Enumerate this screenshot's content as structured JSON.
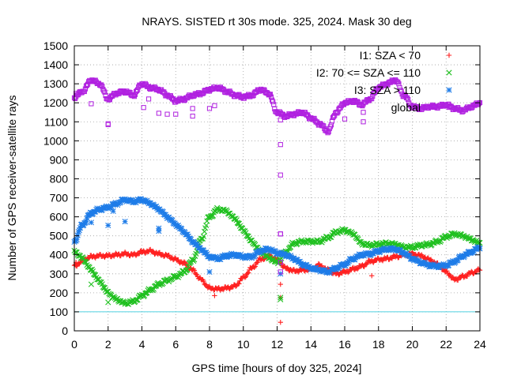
{
  "chart_data": {
    "type": "scatter",
    "title": "NRAYS. SISTED rt 30s mode. 325, 2024. Mask 30 deg",
    "xlabel": "GPS time [hours of doy 325, 2024]",
    "ylabel": "Number of GPS receiver-satellite rays",
    "xlim": [
      0,
      24
    ],
    "ylim": [
      0,
      1500
    ],
    "x_ticks": [
      0,
      2,
      4,
      6,
      8,
      10,
      12,
      14,
      16,
      18,
      20,
      22,
      24
    ],
    "y_ticks": [
      0,
      100,
      200,
      300,
      400,
      500,
      600,
      700,
      800,
      900,
      1000,
      1100,
      1200,
      1300,
      1400,
      1500
    ],
    "grid": true,
    "legend_position": "top-right",
    "threshold_line": {
      "y": 100,
      "color": "#4fd0e0"
    },
    "series": [
      {
        "name": "I1: SZA < 70",
        "marker": "+",
        "color": "#ff2020",
        "x": [
          0,
          0.5,
          1,
          1.5,
          2,
          2.5,
          3,
          3.5,
          4,
          4.5,
          5,
          5.5,
          6,
          6.5,
          7,
          7.5,
          8,
          8.5,
          9,
          9.5,
          10,
          10.5,
          11,
          11.5,
          12,
          12.5,
          13,
          13.5,
          14,
          14.5,
          15,
          15.5,
          16,
          16.5,
          17,
          17.5,
          18,
          18.5,
          19,
          19.5,
          20,
          20.5,
          21,
          21.5,
          22,
          22.5,
          23,
          23.5,
          24
        ],
        "y": [
          340,
          370,
          390,
          395,
          395,
          400,
          405,
          400,
          415,
          420,
          405,
          395,
          375,
          355,
          320,
          270,
          225,
          220,
          225,
          235,
          280,
          330,
          375,
          395,
          375,
          330,
          315,
          320,
          325,
          345,
          320,
          300,
          310,
          325,
          340,
          365,
          375,
          380,
          390,
          400,
          405,
          395,
          375,
          350,
          310,
          270,
          285,
          305,
          320
        ],
        "outliers": [
          [
            0.1,
            360
          ],
          [
            8.3,
            185
          ],
          [
            12.2,
            245
          ],
          [
            12.2,
            175
          ],
          [
            12.2,
            45
          ],
          [
            16.6,
            330
          ],
          [
            17.6,
            290
          ]
        ]
      },
      {
        "name": "I2: 70 <= SZA <= 110",
        "marker": "×",
        "color": "#20c020",
        "x": [
          0,
          0.5,
          1,
          1.5,
          2,
          2.5,
          3,
          3.5,
          4,
          4.5,
          5,
          5.5,
          6,
          6.5,
          7,
          7.5,
          8,
          8.5,
          9,
          9.5,
          10,
          10.5,
          11,
          11.5,
          12,
          12.5,
          13,
          13.5,
          14,
          14.5,
          15,
          15.5,
          16,
          16.5,
          17,
          17.5,
          18,
          18.5,
          19,
          19.5,
          20,
          20.5,
          21,
          21.5,
          22,
          22.5,
          23,
          23.5,
          24
        ],
        "y": [
          420,
          380,
          320,
          260,
          200,
          165,
          145,
          155,
          185,
          215,
          245,
          265,
          285,
          310,
          370,
          480,
          600,
          640,
          630,
          590,
          530,
          470,
          420,
          385,
          360,
          415,
          460,
          470,
          470,
          470,
          490,
          520,
          530,
          510,
          460,
          450,
          455,
          460,
          455,
          440,
          440,
          450,
          455,
          470,
          495,
          510,
          500,
          480,
          460
        ],
        "outliers": [
          [
            1.0,
            245
          ],
          [
            2.0,
            150
          ],
          [
            8.2,
            605
          ],
          [
            12.2,
            175
          ],
          [
            12.2,
            165
          ]
        ]
      },
      {
        "name": "I3: SZA > 110",
        "marker": "*",
        "color": "#1e7ce8",
        "x": [
          0,
          0.5,
          1,
          1.5,
          2,
          2.5,
          3,
          3.5,
          4,
          4.5,
          5,
          5.5,
          6,
          6.5,
          7,
          7.5,
          8,
          8.5,
          9,
          9.5,
          10,
          10.5,
          11,
          11.5,
          12,
          12.5,
          13,
          13.5,
          14,
          14.5,
          15,
          15.5,
          16,
          16.5,
          17,
          17.5,
          18,
          18.5,
          19,
          19.5,
          20,
          20.5,
          21,
          21.5,
          22,
          22.5,
          23,
          23.5,
          24
        ],
        "y": [
          470,
          560,
          620,
          640,
          650,
          670,
          690,
          680,
          690,
          670,
          640,
          600,
          560,
          520,
          470,
          430,
          390,
          380,
          395,
          400,
          390,
          390,
          420,
          430,
          410,
          400,
          380,
          350,
          330,
          320,
          310,
          330,
          350,
          380,
          400,
          405,
          420,
          430,
          430,
          410,
          380,
          360,
          345,
          340,
          345,
          365,
          395,
          415,
          440
        ],
        "outliers": [
          [
            1.0,
            570
          ],
          [
            2.0,
            555
          ],
          [
            2.3,
            630
          ],
          [
            3.0,
            575
          ],
          [
            5.0,
            540
          ],
          [
            5.0,
            525
          ],
          [
            8.0,
            310
          ],
          [
            12.2,
            300
          ]
        ]
      },
      {
        "name": "global",
        "marker": "□",
        "color": "#b020e0",
        "x": [
          0,
          0.5,
          1,
          1.5,
          2,
          2.5,
          3,
          3.5,
          4,
          4.5,
          5,
          5.5,
          6,
          6.5,
          7,
          7.5,
          8,
          8.5,
          9,
          9.5,
          10,
          10.5,
          11,
          11.5,
          12,
          12.5,
          13,
          13.5,
          14,
          14.5,
          15,
          15.5,
          16,
          16.5,
          17,
          17.5,
          18,
          18.5,
          19,
          19.5,
          20,
          20.5,
          21,
          21.5,
          22,
          22.5,
          23,
          23.5,
          24
        ],
        "y": [
          1230,
          1260,
          1320,
          1300,
          1220,
          1250,
          1260,
          1240,
          1300,
          1280,
          1270,
          1240,
          1210,
          1220,
          1240,
          1250,
          1270,
          1280,
          1260,
          1240,
          1230,
          1240,
          1270,
          1250,
          1150,
          1130,
          1140,
          1150,
          1120,
          1090,
          1050,
          1150,
          1200,
          1210,
          1190,
          1220,
          1280,
          1300,
          1320,
          1240,
          1180,
          1170,
          1180,
          1180,
          1190,
          1170,
          1160,
          1180,
          1200
        ],
        "outliers": [
          [
            0.1,
            1250
          ],
          [
            1.0,
            1195
          ],
          [
            2.0,
            1090
          ],
          [
            2.0,
            1085
          ],
          [
            4.1,
            1175
          ],
          [
            4.4,
            1220
          ],
          [
            5.0,
            1145
          ],
          [
            5.5,
            1140
          ],
          [
            6.0,
            1140
          ],
          [
            7.0,
            1170
          ],
          [
            7.0,
            1130
          ],
          [
            8.0,
            1170
          ],
          [
            8.3,
            1185
          ],
          [
            12.2,
            1110
          ],
          [
            12.2,
            980
          ],
          [
            12.2,
            820
          ],
          [
            12.2,
            510
          ],
          [
            12.2,
            510
          ],
          [
            12.2,
            360
          ],
          [
            12.2,
            310
          ],
          [
            16.0,
            1115
          ],
          [
            17.1,
            1100
          ],
          [
            17.1,
            1150
          ]
        ]
      }
    ]
  }
}
